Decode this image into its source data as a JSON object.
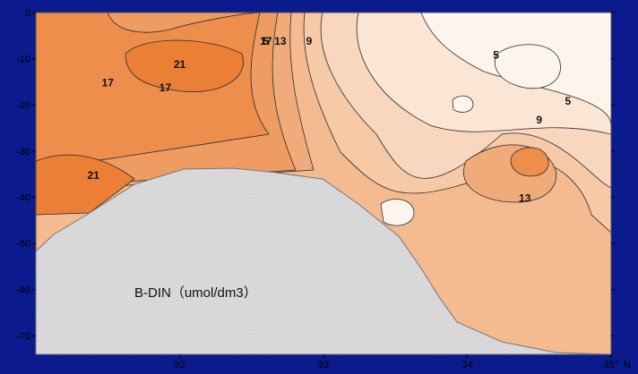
{
  "chart_data": {
    "type": "contour",
    "annotation": "B-DIN（umol/dm3）",
    "x_axis": {
      "min": 31,
      "max": 35,
      "ticks": [
        32,
        33,
        34,
        "35°"
      ],
      "edge_label": "N"
    },
    "y_axis": {
      "min": -74,
      "max": 0,
      "ticks": [
        0,
        -10,
        -20,
        -30,
        -40,
        -50,
        -60,
        -70
      ]
    },
    "contour_levels": [
      5,
      7,
      9,
      11,
      13,
      15,
      17,
      19,
      21,
      23
    ],
    "contour_labels": [
      {
        "value": "5",
        "x": 32.6,
        "y": -7
      },
      {
        "value": "5",
        "x": 34.2,
        "y": -10
      },
      {
        "value": "5",
        "x": 34.7,
        "y": -20
      },
      {
        "value": "9",
        "x": 32.9,
        "y": -7
      },
      {
        "value": "9",
        "x": 34.5,
        "y": -24
      },
      {
        "value": "13",
        "x": 32.7,
        "y": -7
      },
      {
        "value": "13",
        "x": 34.4,
        "y": -41
      },
      {
        "value": "17",
        "x": 32.6,
        "y": -7
      },
      {
        "value": "17",
        "x": 31.5,
        "y": -16
      },
      {
        "value": "17",
        "x": 31.9,
        "y": -17
      },
      {
        "value": "21",
        "x": 32.0,
        "y": -12
      },
      {
        "value": "21",
        "x": 31.4,
        "y": -36
      }
    ],
    "colors": {
      "low": "#fdf5ec",
      "high": "#e8701e",
      "land": "#dcdcde",
      "background": "#0b1a8c"
    },
    "grid": false
  }
}
